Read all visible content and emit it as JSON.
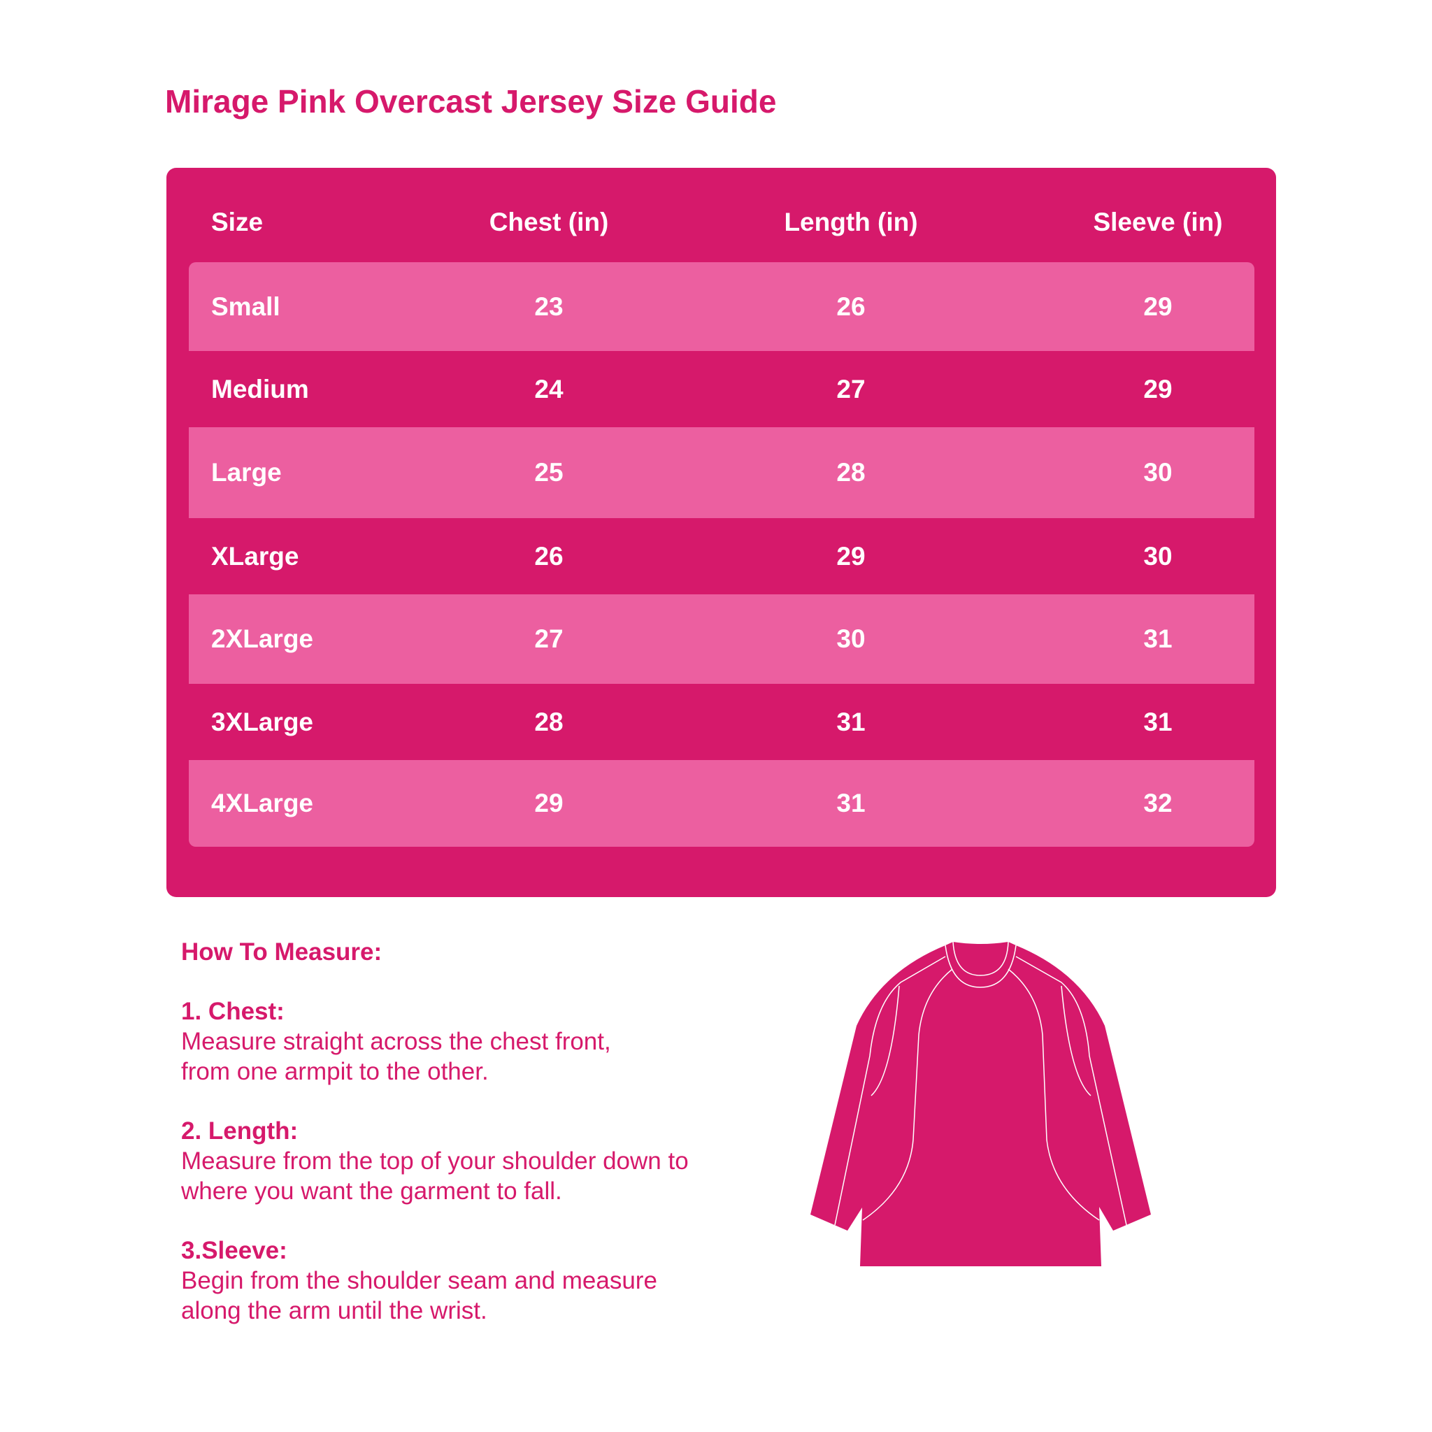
{
  "title": "Mirage Pink Overcast Jersey Size Guide",
  "colors": {
    "primary": "#D6196B",
    "row_light": "#EC5FA0",
    "text_on_table": "#FFFFFF"
  },
  "table": {
    "headers": [
      "Size",
      "Chest (in)",
      "Length (in)",
      "Sleeve (in)"
    ],
    "rows": [
      [
        "Small",
        "23",
        "26",
        "29"
      ],
      [
        "Medium",
        "24",
        "27",
        "29"
      ],
      [
        "Large",
        "25",
        "28",
        "30"
      ],
      [
        "XLarge",
        "26",
        "29",
        "30"
      ],
      [
        "2XLarge",
        "27",
        "30",
        "31"
      ],
      [
        "3XLarge",
        "28",
        "31",
        "31"
      ],
      [
        "4XLarge",
        "29",
        "31",
        "32"
      ]
    ]
  },
  "measure": {
    "heading": "How To Measure:",
    "items": [
      {
        "title": "1. Chest:",
        "lines": [
          "Measure straight across the chest front,",
          "from one armpit to the other."
        ]
      },
      {
        "title": "2. Length:",
        "lines": [
          "Measure from the top of your shoulder down to",
          "where you want the garment to fall."
        ]
      },
      {
        "title": "3.Sleeve:",
        "lines": [
          "Begin from the shoulder seam and measure",
          "along the arm until the wrist."
        ]
      }
    ]
  },
  "illustration": {
    "icon": "jersey-illustration"
  }
}
